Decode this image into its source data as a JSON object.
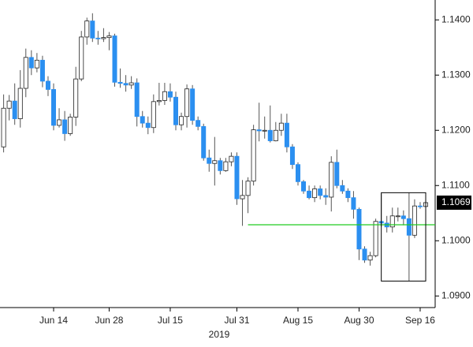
{
  "chart_data": {
    "type": "candlestick",
    "categories": [
      null,
      null,
      null,
      null,
      null,
      null,
      null,
      null,
      null,
      "Jun 14",
      null,
      null,
      null,
      null,
      null,
      null,
      null,
      null,
      null,
      "Jun 28",
      null,
      null,
      null,
      null,
      null,
      null,
      null,
      null,
      null,
      null,
      "Jul 15",
      null,
      null,
      null,
      null,
      null,
      null,
      null,
      null,
      null,
      null,
      null,
      "Jul 31",
      null,
      null,
      null,
      null,
      null,
      null,
      null,
      null,
      null,
      null,
      "Aug 15",
      null,
      null,
      null,
      null,
      null,
      null,
      null,
      null,
      null,
      null,
      "Aug 30",
      null,
      null,
      null,
      null,
      null,
      null,
      null,
      null,
      null,
      null,
      "Sep 16",
      null
    ],
    "year_label": "2019",
    "open": [
      1.117,
      1.124,
      1.1253,
      1.1221,
      1.1276,
      1.1332,
      1.1313,
      1.1327,
      1.1289,
      1.1274,
      1.1209,
      1.1219,
      1.1194,
      1.1224,
      1.1293,
      1.1369,
      1.1398,
      1.1367,
      1.1366,
      1.1368,
      1.1371,
      1.1287,
      1.1285,
      1.1282,
      1.1286,
      1.1225,
      1.1213,
      1.1205,
      1.1252,
      1.1254,
      1.127,
      1.126,
      1.121,
      1.1225,
      1.1275,
      1.1218,
      1.1207,
      1.115,
      1.114,
      1.1145,
      1.1127,
      1.1143,
      1.1153,
      1.1076,
      1.1082,
      1.1108,
      1.1201,
      1.1199,
      1.12,
      1.1181,
      1.12,
      1.1213,
      1.117,
      1.1138,
      1.1107,
      1.109,
      1.1078,
      1.1094,
      1.1082,
      1.1079,
      1.1142,
      1.11,
      1.109,
      1.1078,
      1.1057,
      1.0985,
      1.0965,
      1.0973,
      1.1035,
      1.1032,
      1.1025,
      1.1045,
      1.1045,
      1.104,
      1.101,
      1.1063,
      1.1062
    ],
    "high": [
      1.1265,
      1.1264,
      1.1285,
      1.1309,
      1.1348,
      1.1345,
      1.134,
      1.1335,
      1.1298,
      1.1285,
      1.124,
      1.1235,
      1.123,
      1.1315,
      1.138,
      1.1404,
      1.1412,
      1.138,
      1.1385,
      1.1378,
      1.1375,
      1.1312,
      1.13,
      1.1298,
      1.1294,
      1.1235,
      1.1225,
      1.1265,
      1.1286,
      1.1286,
      1.1285,
      1.127,
      1.1232,
      1.1283,
      1.1282,
      1.1225,
      1.1212,
      1.1165,
      1.1188,
      1.115,
      1.115,
      1.116,
      1.116,
      1.111,
      1.1115,
      1.121,
      1.125,
      1.1225,
      1.1245,
      1.1215,
      1.123,
      1.123,
      1.1175,
      1.1142,
      1.111,
      1.11,
      1.11,
      1.11,
      1.1095,
      1.1153,
      1.1165,
      1.111,
      1.1095,
      1.109,
      1.106,
      1.099,
      1.098,
      1.104,
      1.1085,
      1.1045,
      1.106,
      1.106,
      1.1055,
      1.1087,
      1.1075,
      1.107,
      1.1075
    ],
    "low": [
      1.116,
      1.1218,
      1.121,
      1.1205,
      1.126,
      1.13,
      1.1305,
      1.1278,
      1.1262,
      1.12,
      1.1205,
      1.1181,
      1.119,
      1.1208,
      1.1289,
      1.1355,
      1.136,
      1.1355,
      1.136,
      1.1345,
      1.1279,
      1.1277,
      1.127,
      1.1275,
      1.1207,
      1.1205,
      1.1193,
      1.1195,
      1.1245,
      1.1246,
      1.1252,
      1.12,
      1.12,
      1.1205,
      1.121,
      1.12,
      1.1145,
      1.1125,
      1.11,
      1.112,
      1.1125,
      1.1135,
      1.1065,
      1.1027,
      1.105,
      1.11,
      1.118,
      1.1185,
      1.1178,
      1.118,
      1.119,
      1.116,
      1.113,
      1.11,
      1.1085,
      1.1075,
      1.107,
      1.1075,
      1.1065,
      1.1053,
      1.1095,
      1.1085,
      1.107,
      1.104,
      1.0965,
      1.096,
      1.0955,
      1.097,
      1.1025,
      1.1015,
      1.1015,
      1.1035,
      1.1028,
      1.0927,
      1.1005,
      1.1058,
      1.106
    ],
    "close": [
      1.124,
      1.1253,
      1.1221,
      1.1276,
      1.1332,
      1.1313,
      1.1327,
      1.1289,
      1.1274,
      1.1209,
      1.1219,
      1.1194,
      1.1224,
      1.1293,
      1.1369,
      1.1398,
      1.1367,
      1.1366,
      1.1368,
      1.1371,
      1.1287,
      1.1285,
      1.1282,
      1.1286,
      1.1225,
      1.1213,
      1.1205,
      1.1252,
      1.1254,
      1.127,
      1.126,
      1.121,
      1.1225,
      1.1275,
      1.1218,
      1.1207,
      1.115,
      1.114,
      1.1145,
      1.1127,
      1.1143,
      1.1153,
      1.1076,
      1.1082,
      1.1108,
      1.1201,
      1.1199,
      1.12,
      1.1181,
      1.12,
      1.1213,
      1.117,
      1.1138,
      1.1107,
      1.109,
      1.1078,
      1.1094,
      1.1082,
      1.1079,
      1.1142,
      1.11,
      1.109,
      1.1078,
      1.1057,
      1.0985,
      1.0965,
      1.0973,
      1.1035,
      1.1032,
      1.1025,
      1.1045,
      1.1045,
      1.104,
      1.101,
      1.1063,
      1.1062,
      1.1069
    ],
    "up_color": "#ffffff",
    "down_color": "#2b8ff0",
    "ylim": [
      1.0879,
      1.1436
    ],
    "yticks": [
      {
        "value": 1.14,
        "label": "1.1400"
      },
      {
        "value": 1.13,
        "label": "1.1300"
      },
      {
        "value": 1.12,
        "label": "1.1200"
      },
      {
        "value": 1.11,
        "label": "1.1100"
      },
      {
        "value": 1.1,
        "label": "1.1000"
      },
      {
        "value": 1.09,
        "label": "1.0900"
      }
    ],
    "level_line": {
      "value": 1.1029,
      "start": 44,
      "color": "#22cc22"
    },
    "range_box": {
      "start": 68,
      "end": 76,
      "low": 1.0927,
      "high": 1.1087
    }
  }
}
